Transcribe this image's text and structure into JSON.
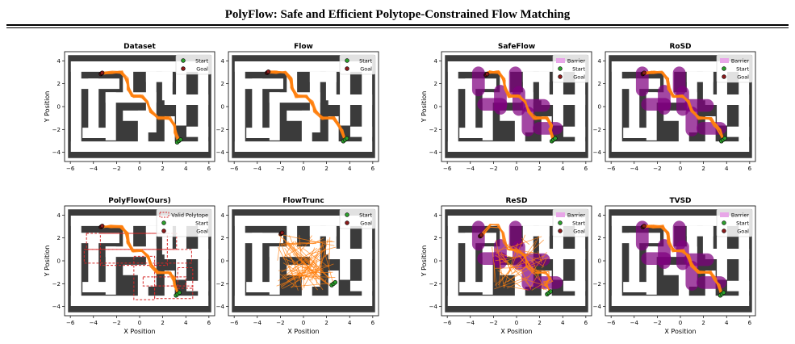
{
  "header": {
    "title": "PolyFlow: Safe and Efficient Polytope-Constrained Flow Matching"
  },
  "axes": {
    "xlabel": "X Position",
    "ylabel": "Y Position"
  },
  "legend": {
    "start": "Start",
    "goal": "Goal",
    "barrier": "Barrier",
    "polytope": "Valid Polytope"
  },
  "colors": {
    "wall": "#3b3b3b",
    "path": "#ff7f0e",
    "barrier": "#800080",
    "barrier_legend": "#e8a6e8",
    "start": "#2ca02c",
    "goal": "#8b1a1a",
    "polytope": "#d62728"
  },
  "chart_data": [
    {
      "type": "trajectory",
      "title": "Dataset",
      "xticks": [
        -6,
        -4,
        -2,
        0,
        2,
        4,
        6
      ],
      "yticks": [
        -4,
        -2,
        0,
        2,
        4
      ],
      "xlim": [
        -6.5,
        6.5
      ],
      "ylim": [
        -4.8,
        4.8
      ],
      "legend": [
        "start",
        "goal"
      ],
      "legend_position": "top-right",
      "ylabel": true,
      "xlabel": false,
      "start": [
        3.4,
        -3.0
      ],
      "goal": [
        -3.3,
        2.9
      ],
      "paths": "smooth"
    },
    {
      "type": "trajectory",
      "title": "Flow",
      "xticks": [
        -6,
        -4,
        -2,
        0,
        2,
        4,
        6
      ],
      "yticks": [
        -4,
        -2,
        0,
        2,
        4
      ],
      "xlim": [
        -6.5,
        6.5
      ],
      "ylim": [
        -4.8,
        4.8
      ],
      "legend": [
        "start",
        "goal"
      ],
      "legend_position": "top-right",
      "ylabel": false,
      "xlabel": false,
      "start": [
        3.6,
        -2.9
      ],
      "goal": [
        -3.1,
        3.0
      ],
      "paths": "smooth"
    },
    {
      "type": "trajectory",
      "title": "SafeFlow",
      "xticks": [
        -6,
        -4,
        -2,
        0,
        2,
        4,
        6
      ],
      "yticks": [
        -4,
        -2,
        0,
        2,
        4
      ],
      "xlim": [
        -6.5,
        6.5
      ],
      "ylim": [
        -4.8,
        4.8
      ],
      "legend": [
        "barrier",
        "start",
        "goal"
      ],
      "legend_position": "top-right",
      "ylabel": true,
      "xlabel": false,
      "start": [
        3.2,
        -2.9
      ],
      "goal": [
        -2.6,
        2.8
      ],
      "paths": "smooth",
      "barriers": true
    },
    {
      "type": "trajectory",
      "title": "RoSD",
      "xticks": [
        -6,
        -4,
        -2,
        0,
        2,
        4,
        6
      ],
      "yticks": [
        -4,
        -2,
        0,
        2,
        4
      ],
      "xlim": [
        -6.5,
        6.5
      ],
      "ylim": [
        -4.8,
        4.8
      ],
      "legend": [
        "barrier",
        "start",
        "goal"
      ],
      "legend_position": "top-right",
      "ylabel": false,
      "xlabel": false,
      "start": [
        3.7,
        -2.9
      ],
      "goal": [
        -3.2,
        2.9
      ],
      "paths": "smooth",
      "barriers": true
    },
    {
      "type": "trajectory",
      "title": "PolyFlow(Ours)",
      "xticks": [
        -6,
        -4,
        -2,
        0,
        2,
        4,
        6
      ],
      "yticks": [
        -4,
        -2,
        0,
        2,
        4
      ],
      "xlim": [
        -6.5,
        6.5
      ],
      "ylim": [
        -4.8,
        4.8
      ],
      "legend": [
        "polytope",
        "start",
        "goal"
      ],
      "legend_position": "top-right",
      "ylabel": true,
      "xlabel": true,
      "start": [
        3.3,
        -2.9
      ],
      "goal": [
        -3.3,
        3.0
      ],
      "paths": "smooth",
      "polytopes": true
    },
    {
      "type": "trajectory",
      "title": "FlowTrunc",
      "xticks": [
        -6,
        -4,
        -2,
        0,
        2,
        4,
        6
      ],
      "yticks": [
        -4,
        -2,
        0,
        2,
        4
      ],
      "xlim": [
        -6.5,
        6.5
      ],
      "ylim": [
        -4.8,
        4.8
      ],
      "legend": [
        "start",
        "goal"
      ],
      "legend_position": "top-right",
      "ylabel": false,
      "xlabel": true,
      "start": [
        2.6,
        -2.0
      ],
      "goal": [
        -1.9,
        2.4
      ],
      "paths": "scatter"
    },
    {
      "type": "trajectory",
      "title": "ReSD",
      "xticks": [
        -6,
        -4,
        -2,
        0,
        2,
        4,
        6
      ],
      "yticks": [
        -4,
        -2,
        0,
        2,
        4
      ],
      "xlim": [
        -6.5,
        6.5
      ],
      "ylim": [
        -4.8,
        4.8
      ],
      "legend": [
        "barrier",
        "start",
        "goal"
      ],
      "legend_position": "top-right",
      "ylabel": true,
      "xlabel": true,
      "start": [
        2.8,
        -2.8
      ],
      "goal": [
        -3.1,
        2.2
      ],
      "paths": "messy",
      "barriers": true
    },
    {
      "type": "trajectory",
      "title": "TVSD",
      "xticks": [
        -6,
        -4,
        -2,
        0,
        2,
        4,
        6
      ],
      "yticks": [
        -4,
        -2,
        0,
        2,
        4
      ],
      "xlim": [
        -6.5,
        6.5
      ],
      "ylim": [
        -4.8,
        4.8
      ],
      "legend": [
        "barrier",
        "start",
        "goal"
      ],
      "legend_position": "top-right",
      "ylabel": false,
      "xlabel": true,
      "start": [
        3.6,
        -2.9
      ],
      "goal": [
        -3.2,
        3.0
      ],
      "paths": "smooth",
      "barriers": true
    }
  ],
  "caption": ""
}
